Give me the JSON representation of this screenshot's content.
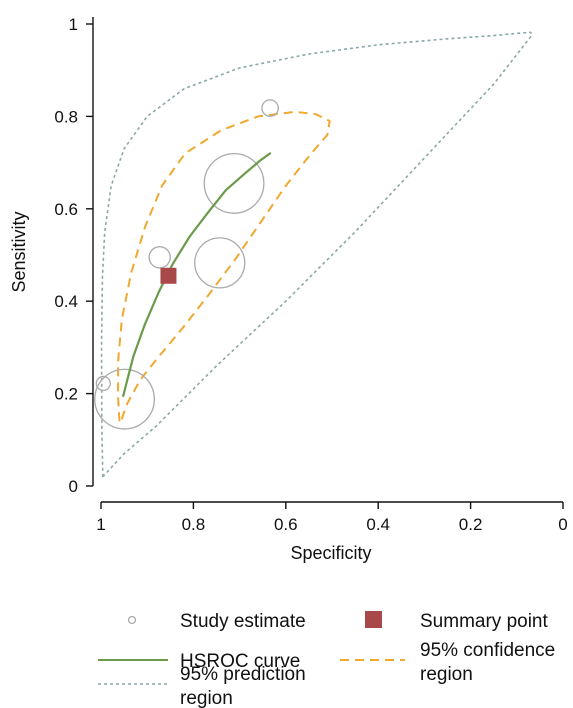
{
  "chart_data": {
    "type": "scatter",
    "title": "",
    "xlabel": "Specificity",
    "ylabel": "Sensitivity",
    "xlim": [
      1,
      0
    ],
    "ylim": [
      0,
      1
    ],
    "x_reversed": true,
    "x_ticks": [
      1,
      0.8,
      0.6,
      0.4,
      0.2,
      0
    ],
    "x_tick_labels": [
      "1",
      "0.8",
      "0.6",
      "0.4",
      "0.2",
      "0"
    ],
    "y_ticks": [
      0,
      0.2,
      0.4,
      0.6,
      0.8,
      1
    ],
    "y_tick_labels": [
      "0",
      "0.2",
      "0.4",
      "0.6",
      "0.8",
      "1"
    ],
    "grid": false,
    "legend_position": "bottom",
    "colors": {
      "study": "#aaaaaa",
      "summary": "#a84848",
      "hsroc": "#6a9a4a",
      "confidence": "#f0a830",
      "prediction": "#8aa8a8"
    },
    "studies": [
      {
        "specificity": 0.634,
        "sensitivity": 0.818,
        "size": 0.14
      },
      {
        "specificity": 0.873,
        "sensitivity": 0.495,
        "size": 0.22
      },
      {
        "specificity": 0.995,
        "sensitivity": 0.222,
        "size": 0.1
      },
      {
        "specificity": 0.712,
        "sensitivity": 0.655,
        "size": 0.86
      },
      {
        "specificity": 0.743,
        "sensitivity": 0.483,
        "size": 0.7
      },
      {
        "specificity": 0.949,
        "sensitivity": 0.188,
        "size": 0.86
      }
    ],
    "summary_point": {
      "specificity": 0.854,
      "sensitivity": 0.455
    },
    "hsroc_curve": [
      [
        0.952,
        0.195
      ],
      [
        0.93,
        0.28
      ],
      [
        0.905,
        0.35
      ],
      [
        0.875,
        0.42
      ],
      [
        0.845,
        0.48
      ],
      [
        0.808,
        0.54
      ],
      [
        0.77,
        0.59
      ],
      [
        0.73,
        0.64
      ],
      [
        0.69,
        0.675
      ],
      [
        0.655,
        0.705
      ],
      [
        0.634,
        0.72
      ]
    ],
    "confidence_region": [
      [
        0.96,
        0.14
      ],
      [
        0.963,
        0.19
      ],
      [
        0.963,
        0.27
      ],
      [
        0.955,
        0.36
      ],
      [
        0.935,
        0.46
      ],
      [
        0.905,
        0.56
      ],
      [
        0.868,
        0.65
      ],
      [
        0.818,
        0.72
      ],
      [
        0.74,
        0.77
      ],
      [
        0.66,
        0.8
      ],
      [
        0.58,
        0.81
      ],
      [
        0.535,
        0.805
      ],
      [
        0.505,
        0.79
      ],
      [
        0.51,
        0.76
      ],
      [
        0.545,
        0.72
      ],
      [
        0.6,
        0.65
      ],
      [
        0.655,
        0.57
      ],
      [
        0.71,
        0.49
      ],
      [
        0.77,
        0.41
      ],
      [
        0.825,
        0.34
      ],
      [
        0.875,
        0.28
      ],
      [
        0.915,
        0.23
      ],
      [
        0.945,
        0.175
      ],
      [
        0.955,
        0.145
      ],
      [
        0.96,
        0.14
      ]
    ],
    "prediction_region": [
      [
        0.996,
        0.02
      ],
      [
        0.998,
        0.12
      ],
      [
        0.999,
        0.3
      ],
      [
        0.997,
        0.45
      ],
      [
        0.992,
        0.55
      ],
      [
        0.978,
        0.65
      ],
      [
        0.95,
        0.73
      ],
      [
        0.9,
        0.8
      ],
      [
        0.82,
        0.86
      ],
      [
        0.7,
        0.905
      ],
      [
        0.55,
        0.935
      ],
      [
        0.4,
        0.955
      ],
      [
        0.25,
        0.968
      ],
      [
        0.15,
        0.975
      ],
      [
        0.095,
        0.98
      ],
      [
        0.07,
        0.982
      ],
      [
        0.068,
        0.975
      ],
      [
        0.15,
        0.87
      ],
      [
        0.3,
        0.71
      ],
      [
        0.45,
        0.55
      ],
      [
        0.6,
        0.4
      ],
      [
        0.75,
        0.26
      ],
      [
        0.88,
        0.13
      ],
      [
        0.95,
        0.07
      ],
      [
        0.996,
        0.02
      ]
    ]
  },
  "legend": {
    "study_estimate": "Study estimate",
    "summary_point": "Summary point",
    "hsroc_curve": "HSROC curve",
    "confidence_line1": "95% confidence",
    "confidence_line2": "region",
    "prediction_line1": "95% prediction",
    "prediction_line2": "region"
  }
}
